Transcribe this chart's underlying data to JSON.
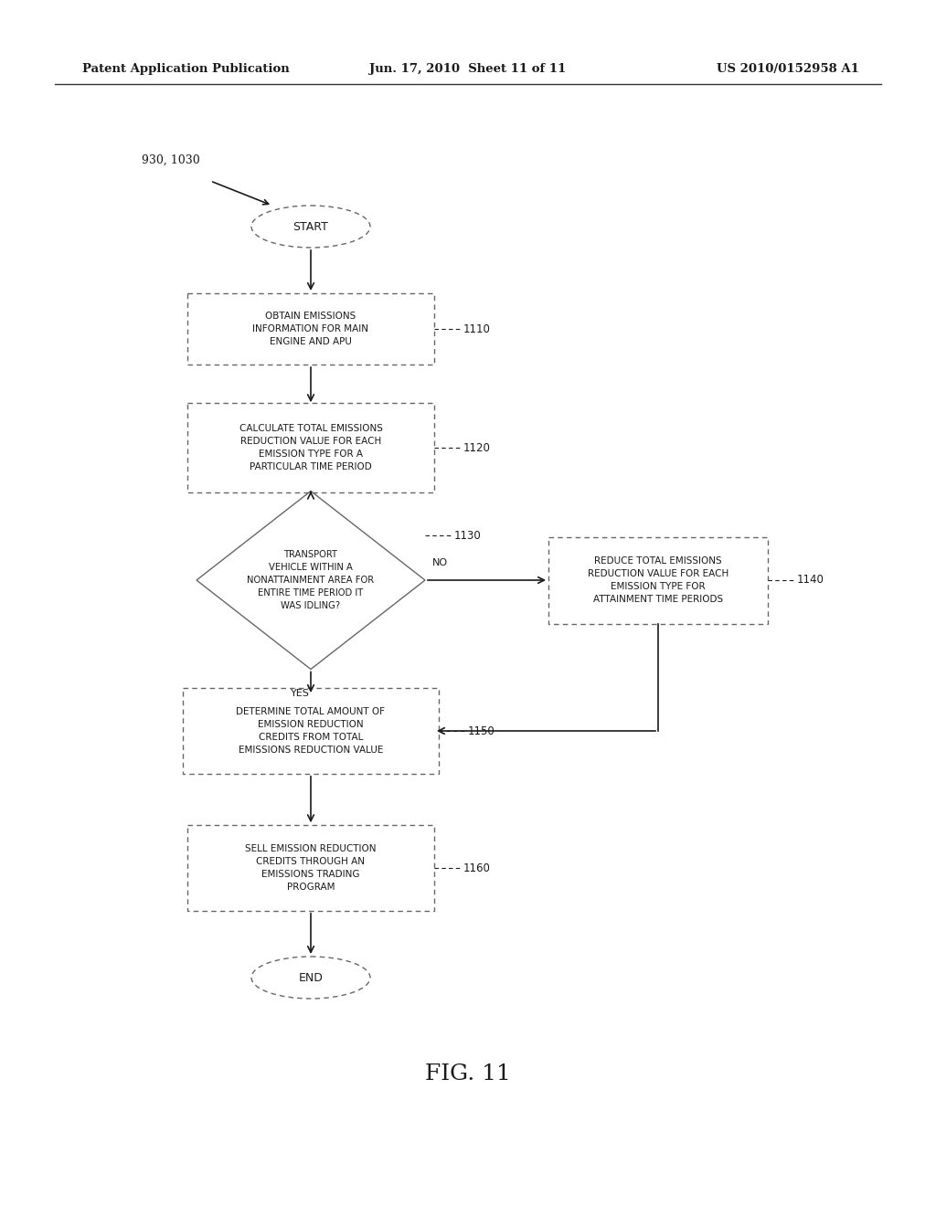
{
  "bg_color": "#ffffff",
  "header_text_left": "Patent Application Publication",
  "header_text_mid": "Jun. 17, 2010  Sheet 11 of 11",
  "header_text_right": "US 2010/0152958 A1",
  "figure_label": "FIG. 11",
  "label_930": "930, 1030",
  "text_color": "#1a1a1a",
  "box_edge_color": "#666666",
  "box_fill_color": "#ffffff",
  "font_size": 7.5,
  "header_font_size": 9.5
}
